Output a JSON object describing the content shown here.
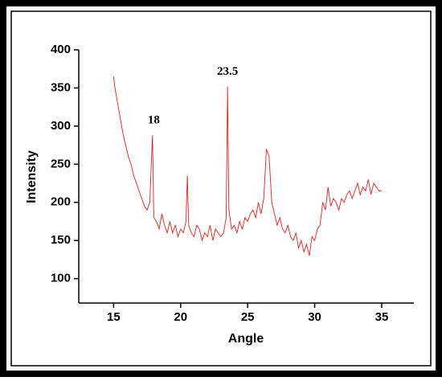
{
  "chart_data": {
    "type": "line",
    "x_label": "Angle",
    "y_label": "Intensity",
    "annotations": [
      {
        "text": "18",
        "x": 18,
        "y": 288
      },
      {
        "text": "23.5",
        "x": 23.5,
        "y": 352
      }
    ],
    "xlim": [
      12.4,
      37.4
    ],
    "ylim": [
      68,
      400
    ],
    "xticks": [
      15,
      20,
      25,
      30,
      35
    ],
    "yticks": [
      100,
      150,
      200,
      250,
      300,
      350,
      400
    ],
    "series": [
      {
        "color": "#e02020",
        "x": [
          15.0,
          15.1,
          15.3,
          15.5,
          15.7,
          15.9,
          16.1,
          16.3,
          16.5,
          16.7,
          16.9,
          17.1,
          17.3,
          17.5,
          17.7,
          17.9,
          18.0,
          18.2,
          18.4,
          18.6,
          18.8,
          19.0,
          19.2,
          19.4,
          19.6,
          19.8,
          20.0,
          20.2,
          20.4,
          20.5,
          20.6,
          20.8,
          21.0,
          21.2,
          21.4,
          21.6,
          21.8,
          22.0,
          22.2,
          22.4,
          22.6,
          22.8,
          23.0,
          23.2,
          23.4,
          23.5,
          23.6,
          23.8,
          24.0,
          24.2,
          24.4,
          24.6,
          24.8,
          25.0,
          25.2,
          25.4,
          25.6,
          25.8,
          26.0,
          26.2,
          26.4,
          26.6,
          26.8,
          27.0,
          27.2,
          27.4,
          27.6,
          27.8,
          28.0,
          28.2,
          28.4,
          28.6,
          28.8,
          29.0,
          29.2,
          29.4,
          29.6,
          29.8,
          30.0,
          30.2,
          30.4,
          30.6,
          30.8,
          31.0,
          31.2,
          31.4,
          31.6,
          31.8,
          32.0,
          32.2,
          32.4,
          32.6,
          32.8,
          33.0,
          33.2,
          33.4,
          33.6,
          33.8,
          34.0,
          34.2,
          34.4,
          34.6,
          34.8,
          35.0
        ],
        "values": [
          365,
          350,
          330,
          310,
          290,
          275,
          260,
          250,
          235,
          225,
          215,
          205,
          195,
          190,
          200,
          288,
          180,
          175,
          165,
          185,
          170,
          160,
          175,
          160,
          170,
          155,
          165,
          160,
          175,
          235,
          170,
          160,
          155,
          170,
          165,
          150,
          160,
          155,
          170,
          150,
          165,
          160,
          155,
          160,
          180,
          352,
          190,
          165,
          170,
          160,
          175,
          165,
          180,
          175,
          185,
          190,
          180,
          200,
          185,
          205,
          270,
          260,
          200,
          185,
          170,
          180,
          165,
          160,
          170,
          155,
          150,
          160,
          140,
          150,
          135,
          145,
          130,
          155,
          150,
          165,
          170,
          200,
          190,
          220,
          195,
          205,
          200,
          190,
          205,
          200,
          210,
          215,
          205,
          215,
          225,
          210,
          220,
          215,
          230,
          210,
          225,
          220,
          215,
          215
        ]
      }
    ]
  }
}
